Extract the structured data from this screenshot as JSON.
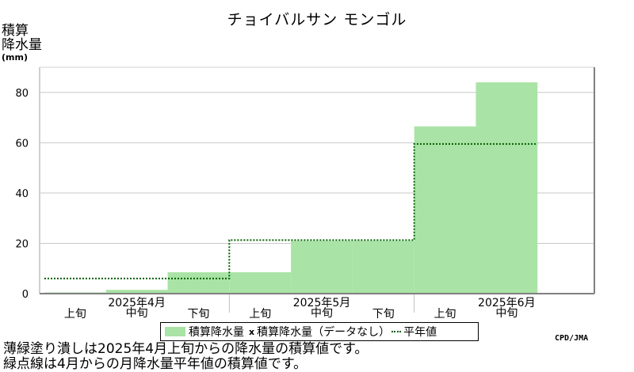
{
  "title": "チョイバルサン モンゴル",
  "ylabel_line1": "積算",
  "ylabel_line2": "降水量",
  "yunit": "(mm)",
  "legend": {
    "bar": "積算降水量",
    "x_mark": "x",
    "missing": "積算降水量（データなし）",
    "normal": "平年値"
  },
  "source": "CPD/JMA",
  "notes": [
    "薄緑塗り潰しは2025年4月上旬からの降水量の積算値です。",
    "緑点線は4月からの月降水量平年値の積算値です。"
  ],
  "colors": {
    "bar": "#a9e3a5",
    "normal_line": "#006000",
    "grid": "#c8c8c8"
  },
  "chart_data": {
    "type": "bar",
    "ylim": [
      0,
      90
    ],
    "yticks": [
      0,
      20,
      40,
      60,
      80
    ],
    "grid": true,
    "categories": [
      "上旬",
      "中旬",
      "下旬",
      "上旬",
      "中旬",
      "下旬",
      "上旬",
      "中旬"
    ],
    "month_labels": [
      "2025年4月",
      "2025年5月",
      "2025年6月"
    ],
    "series": [
      {
        "values": [
          0.5,
          1.5,
          8.5,
          8.5,
          21,
          21,
          66.5,
          84
        ]
      },
      {
        "name": "平年値",
        "values": [
          6,
          6,
          6,
          21.3,
          21.3,
          21.3,
          59.5,
          59.5
        ]
      }
    ]
  }
}
